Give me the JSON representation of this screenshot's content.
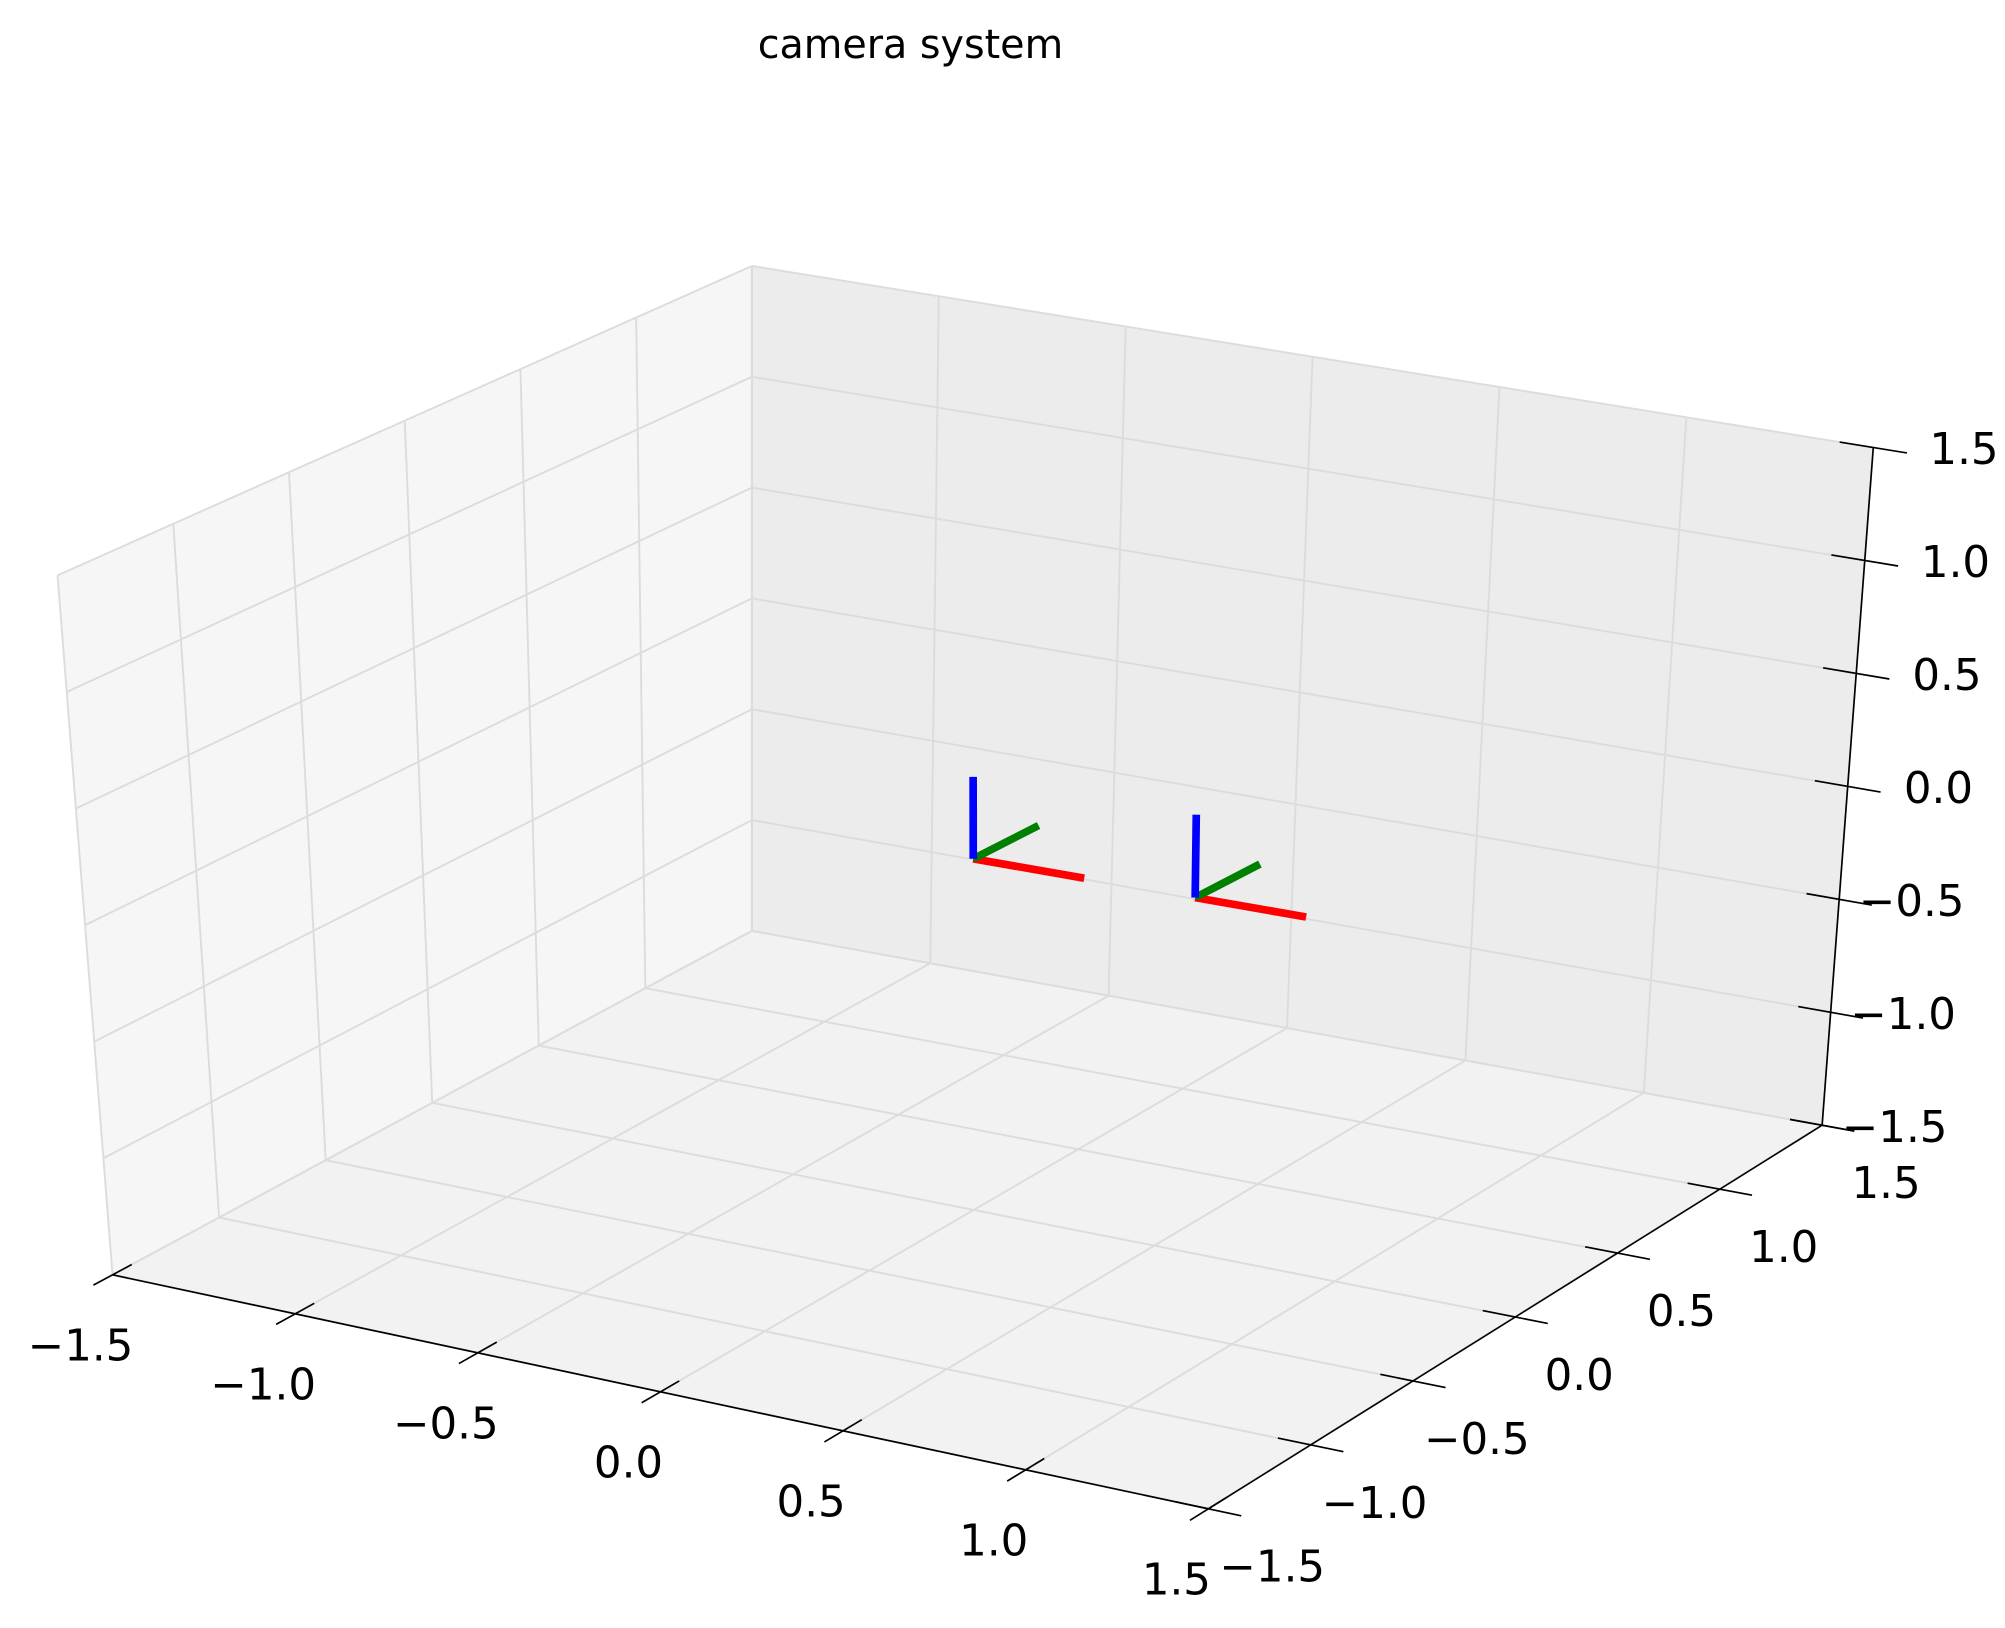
{
  "chart_data": {
    "type": "line3d",
    "title": "camera system",
    "xlim": [
      -1.5,
      1.5
    ],
    "ylim": [
      -1.5,
      1.5
    ],
    "zlim": [
      -1.5,
      1.5
    ],
    "xticks": [
      {
        "value": -1.5,
        "label": "−1.5"
      },
      {
        "value": -1.0,
        "label": "−1.0"
      },
      {
        "value": -0.5,
        "label": "−0.5"
      },
      {
        "value": 0,
        "label": "0.0"
      },
      {
        "value": 0.5,
        "label": "0.5"
      },
      {
        "value": 1.0,
        "label": "1.0"
      },
      {
        "value": 1.5,
        "label": "1.5"
      }
    ],
    "yticks": [
      {
        "value": -1.5,
        "label": "−1.5"
      },
      {
        "value": -1.0,
        "label": "−1.0"
      },
      {
        "value": -0.5,
        "label": "−0.5"
      },
      {
        "value": 0,
        "label": "0.0"
      },
      {
        "value": 0.5,
        "label": "0.5"
      },
      {
        "value": 1.0,
        "label": "1.0"
      },
      {
        "value": 1.5,
        "label": "1.5"
      }
    ],
    "zticks": [
      {
        "value": -1.5,
        "label": "−1.5"
      },
      {
        "value": -1.0,
        "label": "−1.0"
      },
      {
        "value": -0.5,
        "label": "−0.5"
      },
      {
        "value": 0,
        "label": "0.0"
      },
      {
        "value": 0.5,
        "label": "0.5"
      },
      {
        "value": 1.0,
        "label": "1.0"
      },
      {
        "value": 1.5,
        "label": "1.5"
      }
    ],
    "grid": true,
    "series": [
      {
        "color": "#ff0000",
        "x": [
          0,
          0.3
        ],
        "y": [
          0,
          0
        ],
        "z": [
          0,
          0
        ]
      },
      {
        "color": "#008000",
        "x": [
          0,
          0
        ],
        "y": [
          0,
          0.3
        ],
        "z": [
          0,
          0
        ]
      },
      {
        "color": "#0000ff",
        "x": [
          0,
          0
        ],
        "y": [
          0,
          0
        ],
        "z": [
          0,
          0.35
        ]
      },
      {
        "color": "#ff0000",
        "x": [
          0.6,
          0.9
        ],
        "y": [
          0,
          0
        ],
        "z": [
          0,
          0
        ]
      },
      {
        "color": "#008000",
        "x": [
          0.6,
          0.6
        ],
        "y": [
          0,
          0.3
        ],
        "z": [
          0,
          0
        ]
      },
      {
        "color": "#0000ff",
        "x": [
          0.6,
          0.6
        ],
        "y": [
          0,
          0
        ],
        "z": [
          0,
          0.35
        ]
      }
    ]
  }
}
